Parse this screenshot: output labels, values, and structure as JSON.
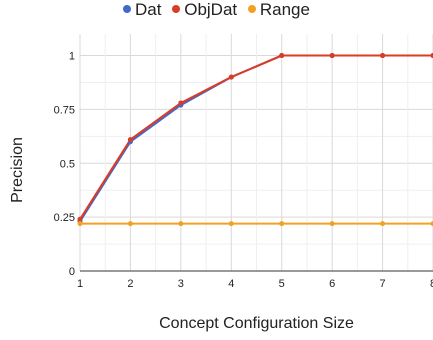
{
  "chart_data": {
    "type": "line",
    "title": "",
    "xlabel": "Concept Configuration Size",
    "ylabel": "Precision",
    "x": [
      1,
      2,
      3,
      4,
      5,
      6,
      7,
      8
    ],
    "x_tick_labels": [
      "1",
      "2",
      "3",
      "4",
      "5",
      "6",
      "7",
      "8"
    ],
    "y_tick_labels": [
      "0",
      "0.25",
      "0.5",
      "0.75",
      "1"
    ],
    "y_ticks": [
      0,
      0.25,
      0.5,
      0.75,
      1
    ],
    "ylim": [
      0,
      1.1
    ],
    "xlim": [
      1,
      8
    ],
    "grid": true,
    "legend_position": "top",
    "series": [
      {
        "name": "Dat",
        "color": "#4169c8",
        "values": [
          0.23,
          0.6,
          0.77,
          0.9,
          1.0,
          1.0,
          1.0,
          1.0
        ]
      },
      {
        "name": "ObjDat",
        "color": "#dc3b24",
        "values": [
          0.24,
          0.61,
          0.78,
          0.9,
          1.0,
          1.0,
          1.0,
          1.0
        ]
      },
      {
        "name": "Range",
        "color": "#f4a020",
        "values": [
          0.22,
          0.22,
          0.22,
          0.22,
          0.22,
          0.22,
          0.22,
          0.22
        ]
      }
    ]
  }
}
